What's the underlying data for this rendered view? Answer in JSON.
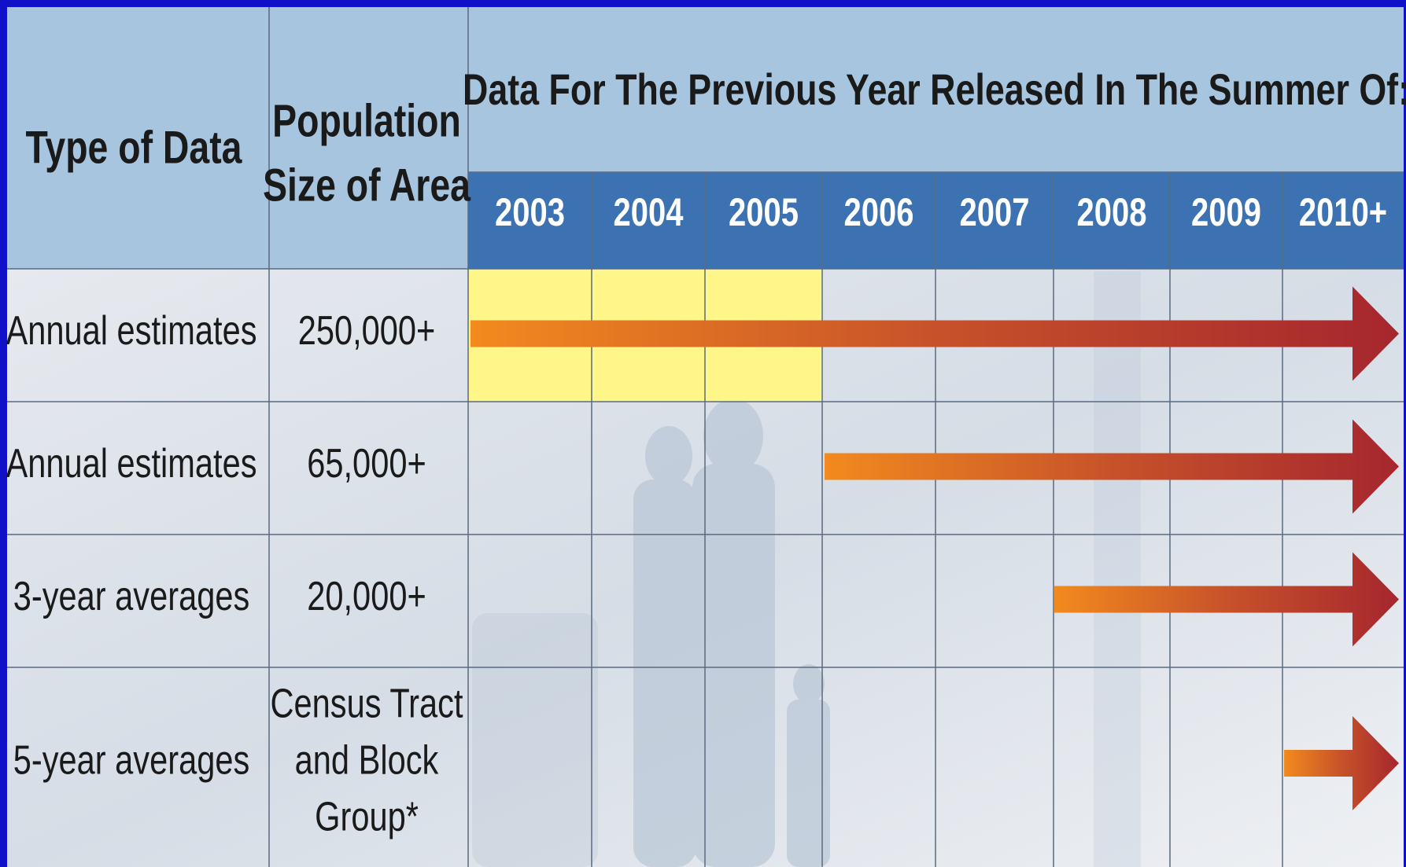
{
  "header": {
    "type_of_data": "Type of Data",
    "population_size": [
      "Population",
      "Size of Area"
    ],
    "release_title": "Data For The Previous Year Released In The Summer Of:",
    "years": [
      "2003",
      "2004",
      "2005",
      "2006",
      "2007",
      "2008",
      "2009",
      "2010+"
    ]
  },
  "rows": [
    {
      "type": "Annual estimates",
      "population": [
        "250,000+"
      ]
    },
    {
      "type": "Annual estimates",
      "population": [
        "65,000+"
      ]
    },
    {
      "type": "3-year averages",
      "population": [
        "20,000+"
      ]
    },
    {
      "type": "5-year averages",
      "population": [
        "Census Tract",
        "and Block",
        "Group*"
      ]
    }
  ]
}
